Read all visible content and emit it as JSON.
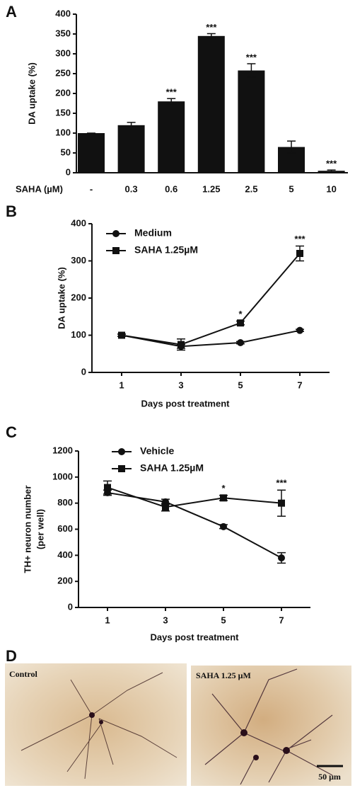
{
  "chart_data": [
    {
      "type": "bar",
      "panel": "A",
      "ylabel": "DA uptake (%)",
      "xlabel": "SAHA (µM)",
      "categories": [
        "-",
        "0.3",
        "0.6",
        "1.25",
        "2.5",
        "5",
        "10"
      ],
      "values": [
        100,
        120,
        180,
        345,
        258,
        65,
        5
      ],
      "error": [
        0,
        7,
        7,
        6,
        17,
        15,
        2
      ],
      "annotations": [
        null,
        null,
        "***",
        "***",
        "***",
        null,
        "***"
      ],
      "color": "#111111",
      "ylim": [
        0,
        400
      ],
      "yticks": [
        0,
        50,
        100,
        150,
        200,
        250,
        300,
        350,
        400
      ]
    },
    {
      "type": "line",
      "panel": "B",
      "ylabel": "DA uptake (%)",
      "xlabel": "Days post treatment",
      "x": [
        1,
        3,
        5,
        7
      ],
      "xlim": [
        0,
        8
      ],
      "xticks": [
        1,
        3,
        5,
        7
      ],
      "ylim": [
        0,
        400
      ],
      "yticks": [
        0,
        100,
        200,
        300,
        400
      ],
      "series": [
        {
          "name": "Medium",
          "color": "#111111",
          "marker": "circle",
          "values": [
            100,
            70,
            80,
            113
          ],
          "error": [
            3,
            5,
            3,
            3
          ]
        },
        {
          "name": "SAHA 1.25µM",
          "color": "#111111",
          "marker": "square",
          "values": [
            100,
            75,
            133,
            320
          ],
          "error": [
            3,
            15,
            5,
            20
          ],
          "annotations": [
            null,
            null,
            "*",
            "***"
          ]
        }
      ]
    },
    {
      "type": "line",
      "panel": "C",
      "ylabel": [
        "TH+ neuron number",
        "(per well)"
      ],
      "xlabel": "Days post  treatment",
      "x": [
        1,
        3,
        5,
        7
      ],
      "xlim": [
        0,
        8
      ],
      "xticks": [
        1,
        3,
        5,
        7
      ],
      "ylim": [
        0,
        1200
      ],
      "yticks": [
        0,
        200,
        400,
        600,
        800,
        1000,
        1200
      ],
      "series": [
        {
          "name": "Vehicle",
          "color": "#111111",
          "marker": "circle",
          "values": [
            880,
            810,
            620,
            380
          ],
          "error": [
            20,
            20,
            15,
            40
          ]
        },
        {
          "name": "SAHA 1.25µM",
          "color": "#111111",
          "marker": "square",
          "values": [
            920,
            770,
            840,
            800
          ],
          "error": [
            50,
            30,
            20,
            100
          ],
          "annotations": [
            null,
            null,
            "*",
            "***"
          ]
        }
      ]
    }
  ],
  "images": {
    "panel": "D",
    "left": "Control",
    "right": "SAHA 1.25 μM",
    "scale_bar": "50 μm"
  }
}
